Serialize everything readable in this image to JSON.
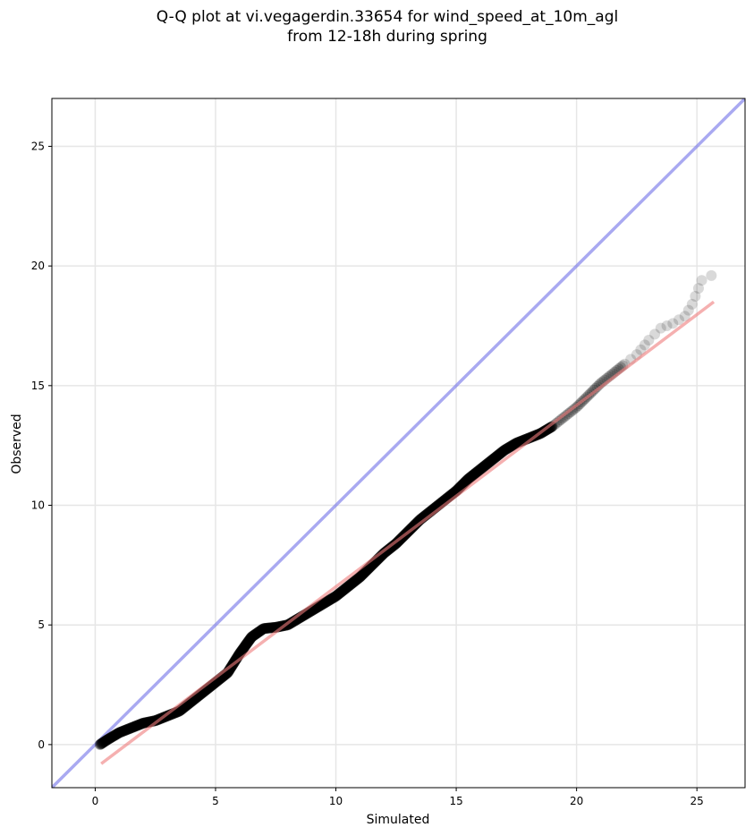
{
  "chart_data": {
    "type": "scatter",
    "title_line1": "Q-Q plot at vi.vegagerdin.33654 for wind_speed_at_10m_agl",
    "title_line2": "from 12-18h during spring",
    "xlabel": "Simulated",
    "ylabel": "Observed",
    "xlim": [
      -1.8,
      27.0
    ],
    "ylim": [
      -1.8,
      27.0
    ],
    "xticks": [
      0,
      5,
      10,
      15,
      20,
      25
    ],
    "yticks": [
      0,
      5,
      10,
      15,
      20,
      25
    ],
    "grid": true,
    "identity_line_color": "#7b7bea",
    "fit_line_color": "#ee7b7b",
    "point_color": "#000000",
    "fit_line": {
      "x": [
        0.25,
        25.7
      ],
      "y": [
        -0.8,
        18.5
      ]
    },
    "series": [
      {
        "points": [
          [
            0.2,
            0.0
          ],
          [
            0.5,
            0.2
          ],
          [
            1.0,
            0.5
          ],
          [
            1.5,
            0.7
          ],
          [
            2.0,
            0.9
          ],
          [
            2.5,
            1.0
          ],
          [
            3.0,
            1.2
          ],
          [
            3.5,
            1.4
          ],
          [
            4.0,
            1.8
          ],
          [
            4.5,
            2.2
          ],
          [
            5.0,
            2.6
          ],
          [
            5.5,
            3.0
          ],
          [
            6.0,
            3.8
          ],
          [
            6.5,
            4.5
          ],
          [
            7.0,
            4.85
          ],
          [
            7.5,
            4.9
          ],
          [
            8.0,
            5.0
          ],
          [
            8.5,
            5.3
          ],
          [
            9.0,
            5.6
          ],
          [
            9.5,
            5.9
          ],
          [
            10.0,
            6.2
          ],
          [
            10.5,
            6.6
          ],
          [
            11.0,
            7.0
          ],
          [
            11.5,
            7.5
          ],
          [
            12.0,
            8.0
          ],
          [
            12.5,
            8.4
          ],
          [
            13.0,
            8.9
          ],
          [
            13.5,
            9.4
          ],
          [
            14.0,
            9.8
          ],
          [
            14.5,
            10.2
          ],
          [
            15.0,
            10.6
          ],
          [
            15.5,
            11.1
          ],
          [
            16.0,
            11.5
          ],
          [
            16.5,
            11.9
          ],
          [
            17.0,
            12.3
          ],
          [
            17.5,
            12.6
          ],
          [
            18.0,
            12.8
          ],
          [
            18.5,
            13.0
          ],
          [
            19.0,
            13.3
          ],
          [
            19.5,
            13.7
          ],
          [
            20.0,
            14.1
          ],
          [
            20.5,
            14.6
          ],
          [
            21.0,
            15.1
          ],
          [
            21.5,
            15.5
          ],
          [
            22.0,
            15.9
          ],
          [
            22.5,
            16.3
          ],
          [
            23.0,
            16.9
          ],
          [
            23.5,
            17.4
          ],
          [
            24.0,
            17.6
          ],
          [
            24.5,
            17.9
          ],
          [
            24.8,
            18.4
          ],
          [
            25.2,
            19.4
          ],
          [
            25.6,
            19.6
          ]
        ]
      }
    ]
  }
}
